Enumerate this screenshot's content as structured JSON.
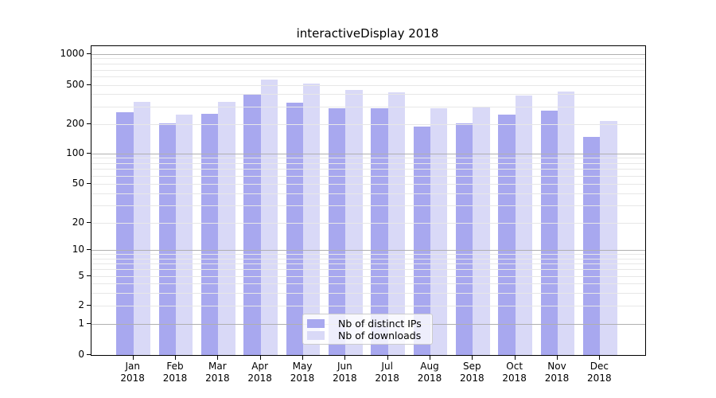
{
  "chart_data": {
    "type": "bar",
    "title": "interactiveDisplay 2018",
    "categories": [
      "Jan 2018",
      "Feb 2018",
      "Mar 2018",
      "Apr 2018",
      "May 2018",
      "Jun 2018",
      "Jul 2018",
      "Aug 2018",
      "Sep 2018",
      "Oct 2018",
      "Nov 2018",
      "Dec 2018"
    ],
    "series": [
      {
        "name": "Nb of distinct IPs",
        "color": "#a8a8ef",
        "values": [
          261,
          202,
          252,
          393,
          328,
          290,
          290,
          189,
          202,
          250,
          272,
          146
        ]
      },
      {
        "name": "Nb of downloads",
        "color": "#d9d9f7",
        "values": [
          336,
          246,
          336,
          566,
          510,
          445,
          420,
          287,
          299,
          386,
          429,
          215
        ]
      }
    ],
    "y_axis": {
      "scale": "symlog",
      "tick_values": [
        0,
        1,
        2,
        5,
        10,
        20,
        50,
        100,
        200,
        500,
        1000
      ],
      "tick_labels": [
        "0",
        "1",
        "2",
        "5",
        "10",
        "20",
        "50",
        "100",
        "200",
        "500",
        "1000"
      ],
      "major_grid_values": [
        1,
        10,
        100,
        1000
      ],
      "ylim": [
        0,
        1100
      ]
    },
    "x_axis": {
      "label_lines": 2
    },
    "legend": {
      "position": "lower center"
    },
    "grid": "horizontal"
  },
  "colors": {
    "major_grid": "#b0b0b0",
    "minor_grid": "#e7e7e7",
    "axis_line": "#000000",
    "legend_border": "#cccccc",
    "background": "#ffffff"
  }
}
